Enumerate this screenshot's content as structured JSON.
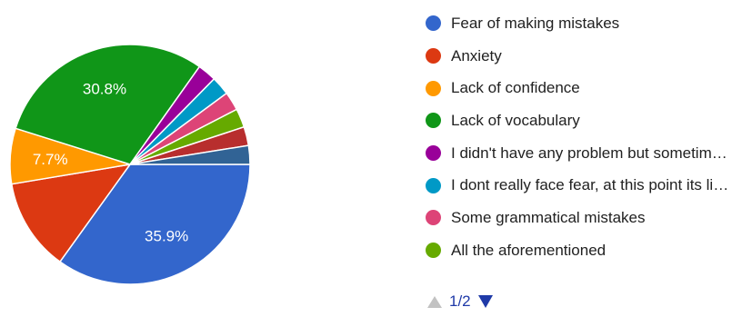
{
  "chart_data": {
    "type": "pie",
    "slices": [
      {
        "label": "Fear of making mistakes",
        "value": 35.9,
        "color": "#3366cc",
        "display": "35.9%"
      },
      {
        "label": "Anxiety",
        "value": 12.8,
        "color": "#dc3912",
        "display": ""
      },
      {
        "label": "Lack of confidence",
        "value": 7.7,
        "color": "#ff9900",
        "display": "7.7%"
      },
      {
        "label": "Lack of vocabulary",
        "value": 30.8,
        "color": "#109618",
        "display": "30.8%"
      },
      {
        "label": "I didn't have any problem but sometim…",
        "value": 2.6,
        "color": "#990099",
        "display": ""
      },
      {
        "label": "I dont really face fear, at this point its li…",
        "value": 2.6,
        "color": "#0099c6",
        "display": ""
      },
      {
        "label": "Some grammatical mistakes",
        "value": 2.6,
        "color": "#dd4477",
        "display": ""
      },
      {
        "label": "All the aforementioned",
        "value": 2.6,
        "color": "#66aa00",
        "display": ""
      },
      {
        "label": "",
        "value": 2.6,
        "color": "#b82e2e",
        "display": ""
      },
      {
        "label": "",
        "value": 2.6,
        "color": "#316395",
        "display": ""
      }
    ],
    "start_angle": "3 o'clock",
    "direction": "clockwise",
    "legend_position": "right"
  },
  "legend": {
    "items": [
      {
        "label": "Fear of making mistakes",
        "color": "#3366cc"
      },
      {
        "label": "Anxiety",
        "color": "#dc3912"
      },
      {
        "label": "Lack of confidence",
        "color": "#ff9900"
      },
      {
        "label": "Lack of vocabulary",
        "color": "#109618"
      },
      {
        "label": "I didn't have any problem but sometim…",
        "color": "#990099"
      },
      {
        "label": "I dont really face fear, at this point its li…",
        "color": "#0099c6"
      },
      {
        "label": "Some grammatical mistakes",
        "color": "#dd4477"
      },
      {
        "label": "All the aforementioned",
        "color": "#66aa00"
      }
    ]
  },
  "pager": {
    "text": "1/2"
  }
}
